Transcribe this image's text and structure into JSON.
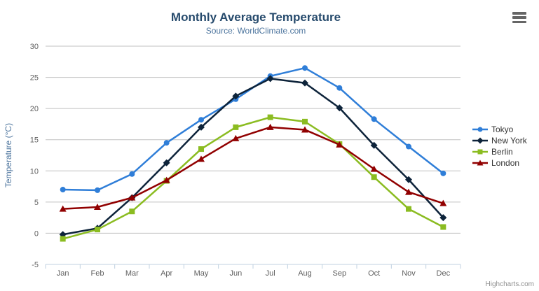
{
  "chart_data": {
    "type": "line",
    "title": "Monthly Average Temperature",
    "subtitle": "Source: WorldClimate.com",
    "xlabel": "",
    "ylabel": "Temperature (°C)",
    "ylim": [
      -5,
      30
    ],
    "ytick_step": 5,
    "grid": true,
    "legend_position": "right",
    "categories": [
      "Jan",
      "Feb",
      "Mar",
      "Apr",
      "May",
      "Jun",
      "Jul",
      "Aug",
      "Sep",
      "Oct",
      "Nov",
      "Dec"
    ],
    "series": [
      {
        "name": "Tokyo",
        "color": "#2f7ed8",
        "marker": "circle",
        "values": [
          7.0,
          6.9,
          9.5,
          14.5,
          18.2,
          21.5,
          25.2,
          26.5,
          23.3,
          18.3,
          13.9,
          9.6
        ]
      },
      {
        "name": "New York",
        "color": "#0d233a",
        "marker": "diamond",
        "values": [
          -0.2,
          0.8,
          5.7,
          11.3,
          17.0,
          22.0,
          24.8,
          24.1,
          20.1,
          14.1,
          8.6,
          2.5
        ]
      },
      {
        "name": "Berlin",
        "color": "#8bbc21",
        "marker": "square",
        "values": [
          -0.9,
          0.6,
          3.5,
          8.4,
          13.5,
          17.0,
          18.6,
          17.9,
          14.3,
          9.0,
          3.9,
          1.0
        ]
      },
      {
        "name": "London",
        "color": "#910000",
        "marker": "triangle",
        "values": [
          3.9,
          4.2,
          5.7,
          8.5,
          11.9,
          15.2,
          17.0,
          16.6,
          14.2,
          10.3,
          6.6,
          4.8
        ]
      }
    ],
    "credits": "Highcharts.com",
    "colors": {
      "title": "#274b6d",
      "subtitle": "#4d759e",
      "axis_title": "#4d759e",
      "axis_label": "#606060",
      "grid": "#c0c0c0",
      "axis_line": "#c0d0e0",
      "legend_text": "#333333",
      "credit": "#909090",
      "menu_icon": "#666666",
      "background": "#ffffff"
    }
  }
}
